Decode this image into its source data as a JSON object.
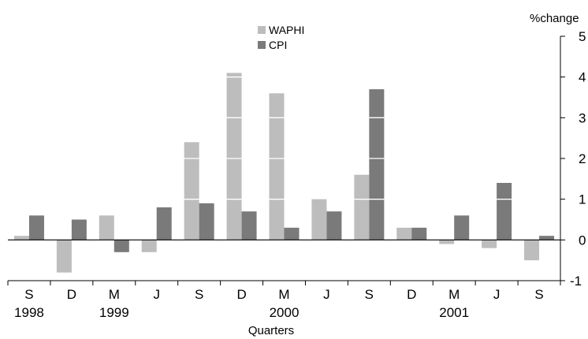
{
  "chart_data": {
    "type": "bar",
    "title": "",
    "xlabel": "Quarters",
    "ylabel": "%change",
    "ylim": [
      -1,
      5
    ],
    "yticks": [
      "-1",
      "0",
      "1",
      "2",
      "3",
      "4",
      "5"
    ],
    "grid": false,
    "legend_position": "top-center",
    "categories": [
      "S",
      "D",
      "M",
      "J",
      "S",
      "D",
      "M",
      "J",
      "S",
      "D",
      "M",
      "J",
      "S"
    ],
    "year_labels": [
      {
        "label": "1998",
        "category_index": 0
      },
      {
        "label": "1999",
        "category_index": 2
      },
      {
        "label": "2000",
        "category_index": 6
      },
      {
        "label": "2001",
        "category_index": 10
      }
    ],
    "series": [
      {
        "name": "WAPHI",
        "color": "#bdbdbd",
        "values": [
          0.1,
          -0.8,
          0.6,
          -0.3,
          2.4,
          4.1,
          3.6,
          1.0,
          1.6,
          0.3,
          -0.1,
          -0.2,
          -0.5
        ]
      },
      {
        "name": "CPI",
        "color": "#7a7a7a",
        "values": [
          0.6,
          0.5,
          -0.3,
          0.8,
          0.9,
          0.7,
          0.3,
          0.7,
          3.7,
          0.3,
          0.6,
          1.4,
          0.1
        ]
      }
    ]
  }
}
